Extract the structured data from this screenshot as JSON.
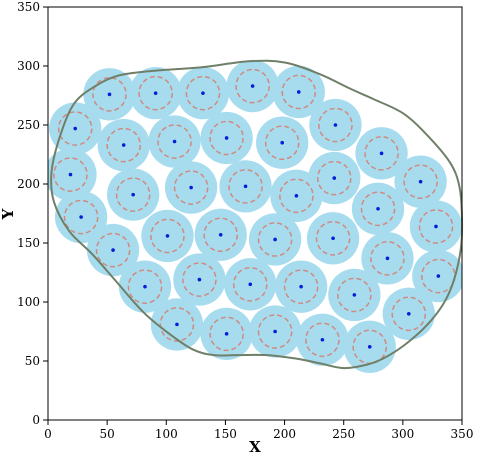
{
  "chart_data": {
    "type": "scatter",
    "title": "",
    "xlabel": "X",
    "ylabel": "Y",
    "xlim": [
      0,
      350
    ],
    "ylim": [
      0,
      350
    ],
    "xticks": [
      0,
      50,
      100,
      150,
      200,
      250,
      300,
      350
    ],
    "yticks": [
      0,
      50,
      100,
      150,
      200,
      250,
      300,
      350
    ],
    "grid": false,
    "legend": "none",
    "circle_radius": 14,
    "fill_color": "#a7dcef",
    "circle_color": "#d08a80",
    "center_color": "#0b1bd6",
    "boundary_color": "#6f7f68",
    "boundary": [
      [
        22,
        268
      ],
      [
        40,
        283
      ],
      [
        60,
        292
      ],
      [
        90,
        296
      ],
      [
        130,
        299
      ],
      [
        170,
        304
      ],
      [
        200,
        303
      ],
      [
        230,
        293
      ],
      [
        255,
        281
      ],
      [
        275,
        272
      ],
      [
        300,
        260
      ],
      [
        320,
        242
      ],
      [
        340,
        218
      ],
      [
        348,
        197
      ],
      [
        350,
        170
      ],
      [
        349,
        145
      ],
      [
        343,
        118
      ],
      [
        334,
        98
      ],
      [
        320,
        80
      ],
      [
        302,
        64
      ],
      [
        285,
        53
      ],
      [
        270,
        47
      ],
      [
        250,
        44
      ],
      [
        230,
        48
      ],
      [
        210,
        52
      ],
      [
        185,
        55
      ],
      [
        160,
        55
      ],
      [
        140,
        55
      ],
      [
        122,
        60
      ],
      [
        100,
        75
      ],
      [
        80,
        92
      ],
      [
        58,
        117
      ],
      [
        38,
        140
      ],
      [
        18,
        160
      ],
      [
        5,
        185
      ],
      [
        3,
        210
      ],
      [
        10,
        240
      ]
    ],
    "points": [
      {
        "x": 52,
        "y": 276
      },
      {
        "x": 91,
        "y": 277
      },
      {
        "x": 131,
        "y": 277
      },
      {
        "x": 173,
        "y": 283
      },
      {
        "x": 212,
        "y": 278
      },
      {
        "x": 23,
        "y": 247
      },
      {
        "x": 64,
        "y": 233
      },
      {
        "x": 107,
        "y": 236
      },
      {
        "x": 151,
        "y": 239
      },
      {
        "x": 198,
        "y": 235
      },
      {
        "x": 243,
        "y": 250
      },
      {
        "x": 282,
        "y": 226
      },
      {
        "x": 19,
        "y": 208
      },
      {
        "x": 72,
        "y": 191
      },
      {
        "x": 121,
        "y": 197
      },
      {
        "x": 167,
        "y": 198
      },
      {
        "x": 210,
        "y": 190
      },
      {
        "x": 242,
        "y": 205
      },
      {
        "x": 315,
        "y": 202
      },
      {
        "x": 28,
        "y": 172
      },
      {
        "x": 279,
        "y": 179
      },
      {
        "x": 101,
        "y": 156
      },
      {
        "x": 146,
        "y": 157
      },
      {
        "x": 192,
        "y": 153
      },
      {
        "x": 241,
        "y": 154
      },
      {
        "x": 328,
        "y": 164
      },
      {
        "x": 55,
        "y": 144
      },
      {
        "x": 287,
        "y": 137
      },
      {
        "x": 128,
        "y": 119
      },
      {
        "x": 171,
        "y": 115
      },
      {
        "x": 214,
        "y": 113
      },
      {
        "x": 330,
        "y": 122
      },
      {
        "x": 82,
        "y": 113
      },
      {
        "x": 259,
        "y": 106
      },
      {
        "x": 305,
        "y": 90
      },
      {
        "x": 109,
        "y": 81
      },
      {
        "x": 151,
        "y": 73
      },
      {
        "x": 192,
        "y": 75
      },
      {
        "x": 232,
        "y": 68
      },
      {
        "x": 272,
        "y": 62
      }
    ]
  }
}
